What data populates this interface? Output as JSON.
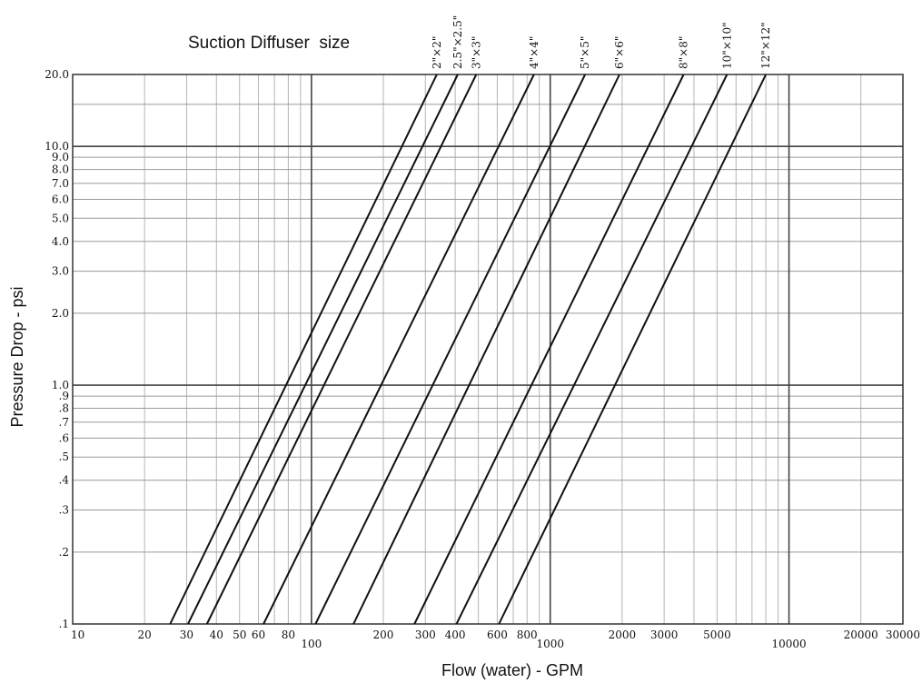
{
  "chart_data": {
    "type": "line",
    "title": "Suction Diffuser  size",
    "xlabel": "Flow (water) - GPM",
    "ylabel": "Pressure Drop - psi",
    "x_scale": "log",
    "y_scale": "log",
    "xlim": [
      10,
      30000
    ],
    "ylim": [
      0.1,
      20
    ],
    "grid": true,
    "x_tick_labels": [
      {
        "value": 10,
        "label": "10"
      },
      {
        "value": 20,
        "label": "20"
      },
      {
        "value": 30,
        "label": "30"
      },
      {
        "value": 40,
        "label": "40"
      },
      {
        "value": 50,
        "label": "50"
      },
      {
        "value": 60,
        "label": "60"
      },
      {
        "value": 80,
        "label": "80"
      },
      {
        "value": 100,
        "label": "100"
      },
      {
        "value": 200,
        "label": "200"
      },
      {
        "value": 300,
        "label": "300"
      },
      {
        "value": 400,
        "label": "400"
      },
      {
        "value": 600,
        "label": "600"
      },
      {
        "value": 800,
        "label": "800"
      },
      {
        "value": 1000,
        "label": "1000"
      },
      {
        "value": 2000,
        "label": "2000"
      },
      {
        "value": 3000,
        "label": "3000"
      },
      {
        "value": 5000,
        "label": "5000"
      },
      {
        "value": 10000,
        "label": "10000"
      },
      {
        "value": 20000,
        "label": "20000"
      },
      {
        "value": 30000,
        "label": "30000"
      }
    ],
    "y_tick_labels": [
      {
        "value": 20,
        "label": "20.0"
      },
      {
        "value": 10,
        "label": "10.0"
      },
      {
        "value": 9,
        "label": "9.0"
      },
      {
        "value": 8,
        "label": "8.0"
      },
      {
        "value": 7,
        "label": "7.0"
      },
      {
        "value": 6,
        "label": "6.0"
      },
      {
        "value": 5,
        "label": "5.0"
      },
      {
        "value": 4,
        "label": "4.0"
      },
      {
        "value": 3,
        "label": "3.0"
      },
      {
        "value": 2,
        "label": "2.0"
      },
      {
        "value": 1,
        "label": "1.0"
      },
      {
        "value": 0.9,
        "label": ".9"
      },
      {
        "value": 0.8,
        "label": ".8"
      },
      {
        "value": 0.7,
        "label": ".7"
      },
      {
        "value": 0.6,
        "label": ".6"
      },
      {
        "value": 0.5,
        "label": ".5"
      },
      {
        "value": 0.4,
        "label": ".4"
      },
      {
        "value": 0.3,
        "label": ".3"
      },
      {
        "value": 0.2,
        "label": ".2"
      },
      {
        "value": 0.1,
        "label": ".1"
      }
    ],
    "series": [
      {
        "name": "2\"×2\"",
        "points": [
          [
            25.6,
            0.1
          ],
          [
            335,
            20
          ]
        ]
      },
      {
        "name": "2.5\"×2.5\"",
        "points": [
          [
            30.4,
            0.1
          ],
          [
            410,
            20
          ]
        ]
      },
      {
        "name": "3\"×3\"",
        "points": [
          [
            36.5,
            0.1
          ],
          [
            490,
            20
          ]
        ]
      },
      {
        "name": "4\"×4\"",
        "points": [
          [
            63,
            0.1
          ],
          [
            855,
            20
          ]
        ]
      },
      {
        "name": "5\"×5\"",
        "points": [
          [
            104,
            0.1
          ],
          [
            1400,
            20
          ]
        ]
      },
      {
        "name": "6\"×6\"",
        "points": [
          [
            150,
            0.1
          ],
          [
            1950,
            20
          ]
        ]
      },
      {
        "name": "8\"×8\"",
        "points": [
          [
            270,
            0.1
          ],
          [
            3620,
            20
          ]
        ]
      },
      {
        "name": "10\"×10\"",
        "points": [
          [
            405,
            0.1
          ],
          [
            5500,
            20
          ]
        ]
      },
      {
        "name": "12\"×12\"",
        "points": [
          [
            610,
            0.1
          ],
          [
            8000,
            20
          ]
        ]
      }
    ],
    "series_labels": [
      "2\"×2\"",
      "2.5\"×2.5\"",
      "3\"×3\"",
      "4\"×4\"",
      "5\"×5\"",
      "6\"×6\"",
      "8\"×8\"",
      "10\"×10\"",
      "12\"×12\""
    ]
  }
}
